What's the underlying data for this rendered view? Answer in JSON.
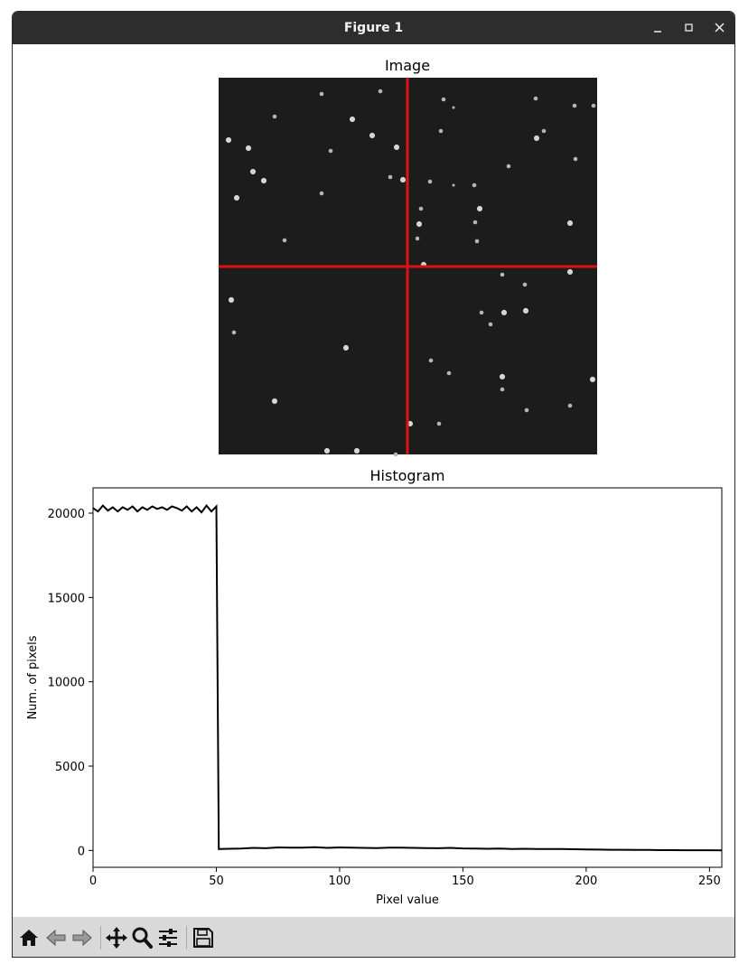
{
  "window": {
    "title": "Figure 1",
    "controls": [
      "minimize-icon",
      "maximize-icon",
      "close-icon"
    ]
  },
  "toolbar": {
    "buttons": [
      "home-icon",
      "back-arrow-icon",
      "forward-arrow-icon",
      "pan-move-icon",
      "zoom-magnifier-icon",
      "configure-subplots-icon",
      "save-floppy-icon"
    ]
  },
  "image_panel": {
    "title": "Image",
    "crosshair_color": "#e01010"
  },
  "chart_data": {
    "type": "line",
    "title": "Histogram",
    "xlabel": "Pixel value",
    "ylabel": "Num. of pixels",
    "xlim": [
      0,
      255
    ],
    "ylim": [
      -1000,
      21500
    ],
    "xticks": [
      "0",
      "50",
      "100",
      "150",
      "200",
      "250"
    ],
    "yticks": [
      "0",
      "5000",
      "10000",
      "15000",
      "20000"
    ],
    "line_color": "#000000",
    "series": [
      {
        "x": [
          0,
          2,
          4,
          6,
          8,
          10,
          12,
          14,
          16,
          18,
          20,
          22,
          24,
          26,
          28,
          30,
          32,
          34,
          36,
          38,
          40,
          42,
          44,
          46,
          48,
          50,
          51,
          55,
          60,
          65,
          70,
          75,
          80,
          85,
          90,
          95,
          100,
          105,
          110,
          115,
          120,
          125,
          130,
          135,
          140,
          145,
          150,
          155,
          160,
          165,
          170,
          175,
          180,
          185,
          190,
          195,
          200,
          205,
          210,
          215,
          220,
          225,
          230,
          235,
          240,
          245,
          250,
          255
        ],
        "y": [
          20300,
          20100,
          20450,
          20150,
          20350,
          20100,
          20350,
          20200,
          20400,
          20100,
          20350,
          20200,
          20400,
          20250,
          20350,
          20200,
          20400,
          20300,
          20150,
          20400,
          20100,
          20350,
          20050,
          20450,
          20100,
          20400,
          80,
          100,
          110,
          150,
          130,
          180,
          160,
          170,
          190,
          150,
          180,
          160,
          150,
          140,
          170,
          160,
          150,
          140,
          130,
          150,
          120,
          110,
          100,
          110,
          90,
          100,
          80,
          90,
          80,
          70,
          60,
          50,
          40,
          40,
          30,
          30,
          20,
          20,
          15,
          10,
          10,
          5
        ]
      }
    ]
  }
}
